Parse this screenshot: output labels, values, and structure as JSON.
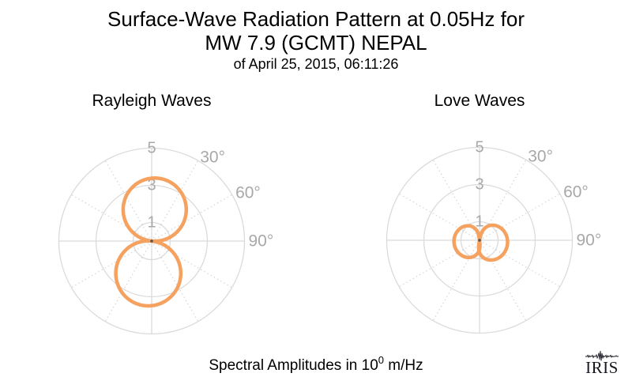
{
  "header": {
    "title_line1": "Surface-Wave Radiation Pattern at 0.05Hz for",
    "title_line2": "MW 7.9 (GCMT) NEPAL",
    "subtitle": "of April 25, 2015, 06:11:26"
  },
  "caption": {
    "prefix": "Spectral Amplitudes in 10",
    "exponent": "0",
    "suffix": " m/Hz"
  },
  "logo": {
    "text": "IRIS"
  },
  "colors": {
    "pattern_stroke": "#F5A15F",
    "grid_solid": "#DBDBDB",
    "grid_dotted": "#D2D2D2",
    "axis_labels": "#A8A8A8",
    "center_dot": "#555555",
    "title_text": "#000000",
    "logo_text": "#17171F"
  },
  "chart_data": [
    {
      "type": "polar",
      "title": "Rayleigh Waves",
      "r_ticks": [
        1,
        3,
        5
      ],
      "r_max": 5,
      "r_units": "10^0 m/Hz",
      "angle_labels": [
        {
          "angle_deg": 30,
          "label": "30°"
        },
        {
          "angle_deg": 60,
          "label": "60°"
        },
        {
          "angle_deg": 90,
          "label": "90°"
        }
      ],
      "solid_spokes_deg": [
        0,
        90,
        180,
        270
      ],
      "dotted_spokes_deg": [
        30,
        60,
        120,
        150,
        210,
        240,
        300,
        330
      ],
      "lobes": [
        {
          "azimuth_deg": 5.5,
          "peak_amplitude": 3.4,
          "width_exponent": 1.0
        },
        {
          "azimuth_deg": 186,
          "peak_amplitude": 3.5,
          "width_exponent": 1.0
        }
      ]
    },
    {
      "type": "polar",
      "title": "Love Waves",
      "r_ticks": [
        1,
        3,
        5
      ],
      "r_max": 5,
      "r_units": "10^0 m/Hz",
      "angle_labels": [
        {
          "angle_deg": 30,
          "label": "30°"
        },
        {
          "angle_deg": 60,
          "label": "60°"
        },
        {
          "angle_deg": 90,
          "label": "90°"
        }
      ],
      "solid_spokes_deg": [
        0,
        90,
        180,
        270
      ],
      "dotted_spokes_deg": [
        30,
        60,
        120,
        150,
        210,
        240,
        300,
        330
      ],
      "lobes": [
        {
          "azimuth_deg": 101,
          "peak_amplitude": 1.52,
          "width_exponent": 0.5
        },
        {
          "azimuth_deg": 263,
          "peak_amplitude": 1.38,
          "width_exponent": 0.5
        }
      ]
    }
  ]
}
